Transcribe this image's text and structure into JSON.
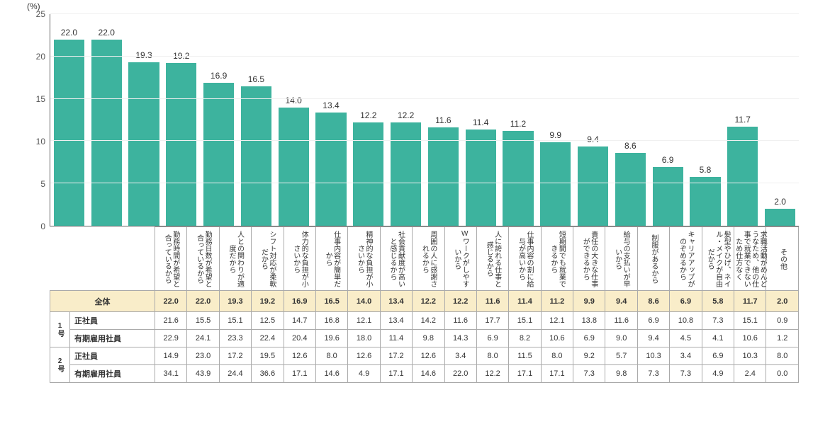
{
  "chart": {
    "type": "bar",
    "y_unit": "(%)",
    "ylim": [
      0,
      25
    ],
    "ytick_step": 5,
    "yticks": [
      0,
      5,
      10,
      15,
      20,
      25
    ],
    "bar_color": "#3db39e",
    "background_color": "#ffffff",
    "grid_color": "#f0f0f0",
    "axis_color": "#666666",
    "label_color": "#333333",
    "bar_width_ratio": 0.82,
    "label_fontsize": 12,
    "categories": [
      "勤務時間が希望と合っているから",
      "勤務日数が希望と合っているから",
      "人との関わりが適度だから",
      "シフト対応が柔軟だから",
      "体力的な負担が小さいから",
      "仕事内容が簡単だから",
      "精神的な負担が小さいから",
      "社会貢献度が高いと感じるから",
      "周囲の人に感謝されるから",
      "Wワークがしやすいから",
      "人に誇れる仕事と感じるから",
      "仕事内容の割に給与が高いから",
      "短期間でも就業できるから",
      "責任の大きな仕事ができるから",
      "給与の支払いが早いから",
      "制服があるから",
      "キャリアアップがのぞめるから",
      "髪型やひげ、ネイル・メイクが自由だから",
      "求職活動がめんどうなため、他の仕事で就業できないため仕方なく",
      "その他"
    ],
    "values": [
      22.0,
      22.0,
      19.3,
      19.2,
      16.9,
      16.5,
      14.0,
      13.4,
      12.2,
      12.2,
      11.6,
      11.4,
      11.2,
      9.9,
      9.4,
      8.6,
      6.9,
      5.8,
      11.7,
      2.0
    ]
  },
  "table": {
    "header_row_label": "全体",
    "header_bg": "#f9edc9",
    "groups": [
      {
        "label": "1号",
        "rows": [
          {
            "label": "正社員",
            "values": [
              21.6,
              15.5,
              15.1,
              12.5,
              14.7,
              16.8,
              12.1,
              13.4,
              14.2,
              11.6,
              17.7,
              15.1,
              12.1,
              13.8,
              11.6,
              6.9,
              10.8,
              7.3,
              15.1,
              0.9
            ]
          },
          {
            "label": "有期雇用社員",
            "values": [
              22.9,
              24.1,
              23.3,
              22.4,
              20.4,
              19.6,
              18.0,
              11.4,
              9.8,
              14.3,
              6.9,
              8.2,
              10.6,
              6.9,
              9.0,
              9.4,
              4.5,
              4.1,
              10.6,
              1.2
            ]
          }
        ]
      },
      {
        "label": "2号",
        "rows": [
          {
            "label": "正社員",
            "values": [
              14.9,
              23.0,
              17.2,
              19.5,
              12.6,
              8.0,
              12.6,
              17.2,
              12.6,
              3.4,
              8.0,
              11.5,
              8.0,
              9.2,
              5.7,
              10.3,
              3.4,
              6.9,
              10.3,
              8.0
            ]
          },
          {
            "label": "有期雇用社員",
            "values": [
              34.1,
              43.9,
              24.4,
              36.6,
              17.1,
              14.6,
              4.9,
              17.1,
              14.6,
              22.0,
              12.2,
              17.1,
              17.1,
              7.3,
              9.8,
              7.3,
              7.3,
              4.9,
              2.4,
              0.0
            ]
          }
        ]
      }
    ]
  }
}
